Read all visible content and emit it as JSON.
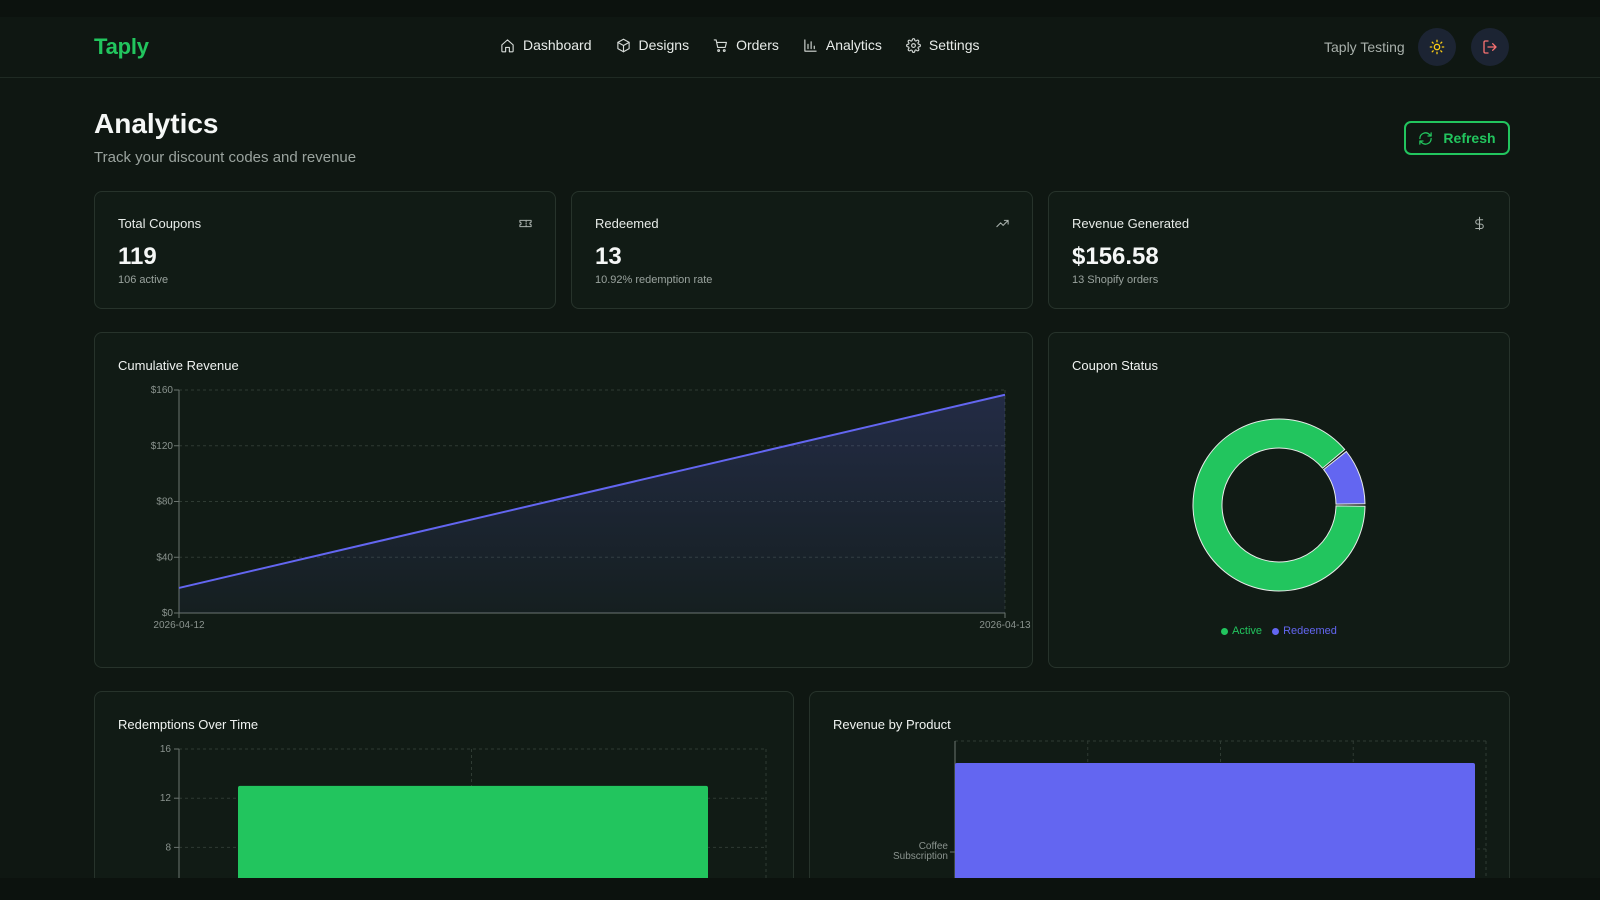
{
  "app": {
    "logo": "Taply",
    "user_name": "Taply Testing"
  },
  "nav": [
    {
      "label": "Dashboard",
      "icon": "home-icon"
    },
    {
      "label": "Designs",
      "icon": "box-icon"
    },
    {
      "label": "Orders",
      "icon": "cart-icon"
    },
    {
      "label": "Analytics",
      "icon": "bar-chart-icon"
    },
    {
      "label": "Settings",
      "icon": "gear-icon"
    }
  ],
  "header_icons": {
    "theme": "sun-icon",
    "logout": "logout-icon"
  },
  "page": {
    "title": "Analytics",
    "subtitle": "Track your discount codes and revenue",
    "refresh_label": "Refresh"
  },
  "stats": [
    {
      "title": "Total Coupons",
      "value": "119",
      "sub": "106 active",
      "icon": "ticket-icon"
    },
    {
      "title": "Redeemed",
      "value": "13",
      "sub": "10.92% redemption rate",
      "icon": "trending-up-icon"
    },
    {
      "title": "Revenue Generated",
      "value": "$156.58",
      "sub": "13 Shopify orders",
      "icon": "dollar-icon"
    }
  ],
  "colors": {
    "accent": "#22c55e",
    "secondary": "#6366f1",
    "background": "#0f1712",
    "card": "#111b15"
  },
  "charts": {
    "cumulative": {
      "title": "Cumulative Revenue"
    },
    "status": {
      "title": "Coupon Status"
    },
    "redemptions": {
      "title": "Redemptions Over Time"
    },
    "product": {
      "title": "Revenue by Product"
    }
  },
  "chart_data": [
    {
      "type": "area",
      "title": "Cumulative Revenue",
      "x": [
        "2026-04-12",
        "2026-04-13"
      ],
      "series": [
        {
          "values": [
            18,
            156.58
          ]
        }
      ],
      "y_tick_labels": [
        "$0",
        "$40",
        "$80",
        "$120",
        "$160"
      ],
      "ylim": [
        0,
        160
      ],
      "grid": true,
      "color": "#6366f1"
    },
    {
      "type": "pie",
      "title": "Coupon Status",
      "categories": [
        "Active",
        "Redeemed"
      ],
      "values": [
        106,
        13
      ],
      "colors": [
        "#22c55e",
        "#6366f1"
      ],
      "legend": "bottom"
    },
    {
      "type": "bar",
      "title": "Redemptions Over Time",
      "categories": [
        ""
      ],
      "values": [
        13
      ],
      "y_tick_labels": [
        "8",
        "12",
        "16"
      ],
      "ylim": [
        0,
        16
      ],
      "grid": true,
      "color": "#22c55e"
    },
    {
      "type": "bar",
      "orientation": "horizontal",
      "title": "Revenue by Product",
      "categories": [
        "Coffee Subscription"
      ],
      "values": [
        156.58
      ],
      "grid": true,
      "color": "#6366f1"
    }
  ]
}
